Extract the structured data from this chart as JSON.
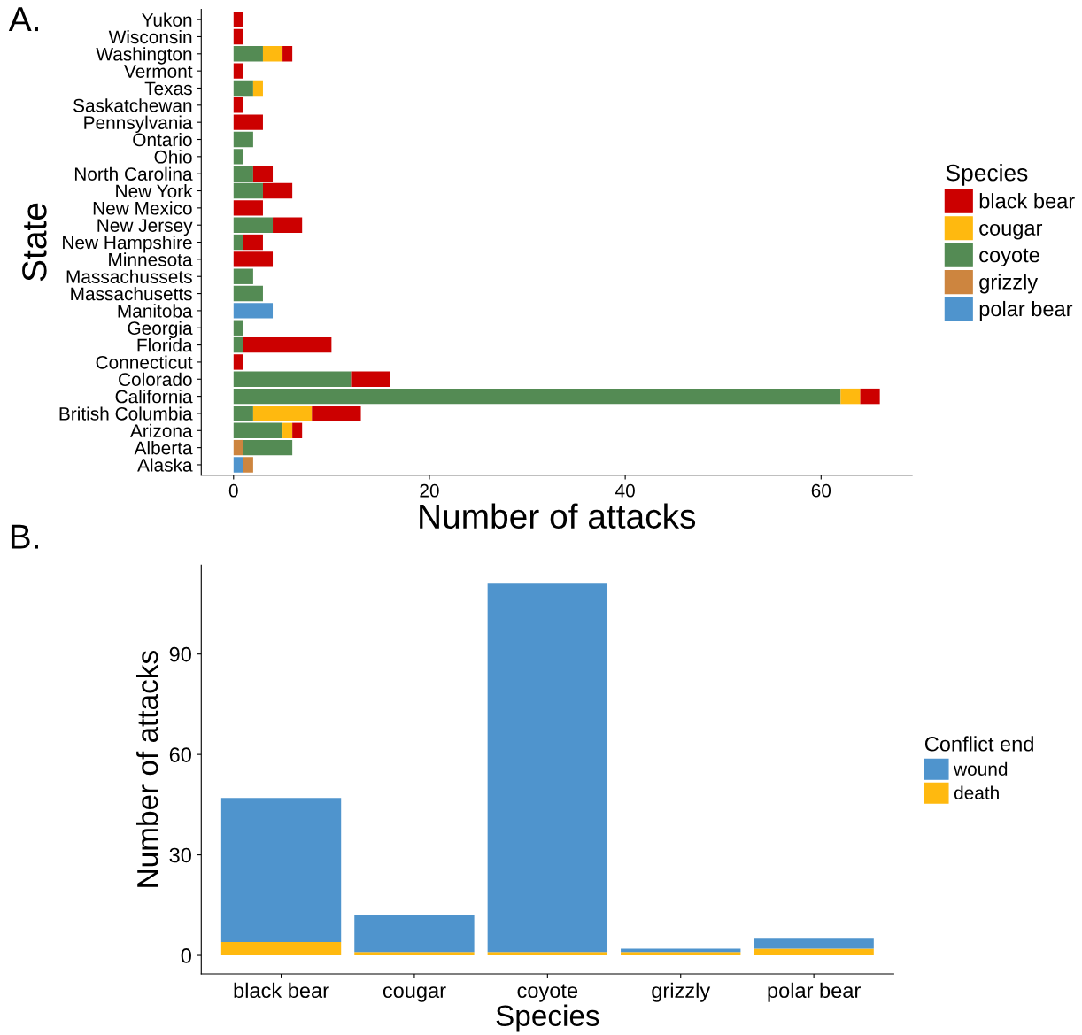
{
  "chart_data": [
    {
      "type": "bar",
      "orientation": "horizontal",
      "stacked": true,
      "xlabel": "Number of attacks",
      "ylabel": "State",
      "legend_title": "Species",
      "legend": "right",
      "grid": false,
      "annotations": [
        "A."
      ],
      "categories": [
        "Yukon",
        "Wisconsin",
        "Washington",
        "Vermont",
        "Texas",
        "Saskatchewan",
        "Pennsylvania",
        "Ontario",
        "Ohio",
        "North Carolina",
        "New York",
        "New Mexico",
        "New Jersey",
        "New Hampshire",
        "Minnesota",
        "Massachussets",
        "Massachusetts",
        "Manitoba",
        "Georgia",
        "Florida",
        "Connecticut",
        "Colorado",
        "California",
        "British Columbia",
        "Arizona",
        "Alberta",
        "Alaska"
      ],
      "xlim": [
        -3.3,
        69.3
      ],
      "xticks": [
        0,
        20,
        40,
        60
      ],
      "series": [
        {
          "name": "polar bear",
          "color": "#4f94cd",
          "values": [
            null,
            null,
            null,
            null,
            null,
            null,
            null,
            null,
            null,
            null,
            null,
            null,
            null,
            null,
            null,
            null,
            null,
            4,
            null,
            null,
            null,
            null,
            null,
            null,
            null,
            null,
            1
          ]
        },
        {
          "name": "grizzly",
          "color": "#cd853f",
          "values": [
            null,
            null,
            null,
            null,
            null,
            null,
            null,
            null,
            null,
            null,
            null,
            null,
            null,
            null,
            null,
            null,
            null,
            null,
            null,
            null,
            null,
            null,
            null,
            null,
            null,
            1,
            1
          ]
        },
        {
          "name": "coyote",
          "color": "#548b54",
          "values": [
            null,
            null,
            3,
            null,
            2,
            null,
            null,
            2,
            1,
            2,
            3,
            null,
            4,
            1,
            null,
            2,
            3,
            null,
            1,
            1,
            null,
            12,
            62,
            2,
            5,
            5,
            null
          ]
        },
        {
          "name": "cougar",
          "color": "#ffb90f",
          "values": [
            null,
            null,
            2,
            null,
            1,
            null,
            null,
            null,
            null,
            null,
            null,
            null,
            null,
            null,
            null,
            null,
            null,
            null,
            null,
            null,
            null,
            null,
            2,
            6,
            1,
            null,
            null
          ]
        },
        {
          "name": "black bear",
          "color": "#cc0000",
          "values": [
            1,
            1,
            1,
            1,
            null,
            1,
            3,
            null,
            null,
            2,
            3,
            3,
            3,
            2,
            4,
            null,
            null,
            null,
            null,
            9,
            1,
            4,
            2,
            5,
            1,
            null,
            null
          ]
        }
      ]
    },
    {
      "type": "bar",
      "stacked": true,
      "xlabel": "Species",
      "ylabel": "Number of attacks",
      "legend_title": "Conflict end",
      "legend": "right",
      "grid": false,
      "annotations": [
        "B."
      ],
      "categories": [
        "black bear",
        "cougar",
        "coyote",
        "grizzly",
        "polar bear"
      ],
      "ylim": [
        -5.55,
        116.55
      ],
      "yticks": [
        0,
        30,
        60,
        90
      ],
      "series": [
        {
          "name": "death",
          "color": "#ffb90f",
          "values": [
            4,
            1,
            1,
            1,
            2
          ]
        },
        {
          "name": "wound",
          "color": "#4f94cd",
          "values": [
            43,
            11,
            110,
            1,
            3
          ]
        }
      ]
    }
  ]
}
